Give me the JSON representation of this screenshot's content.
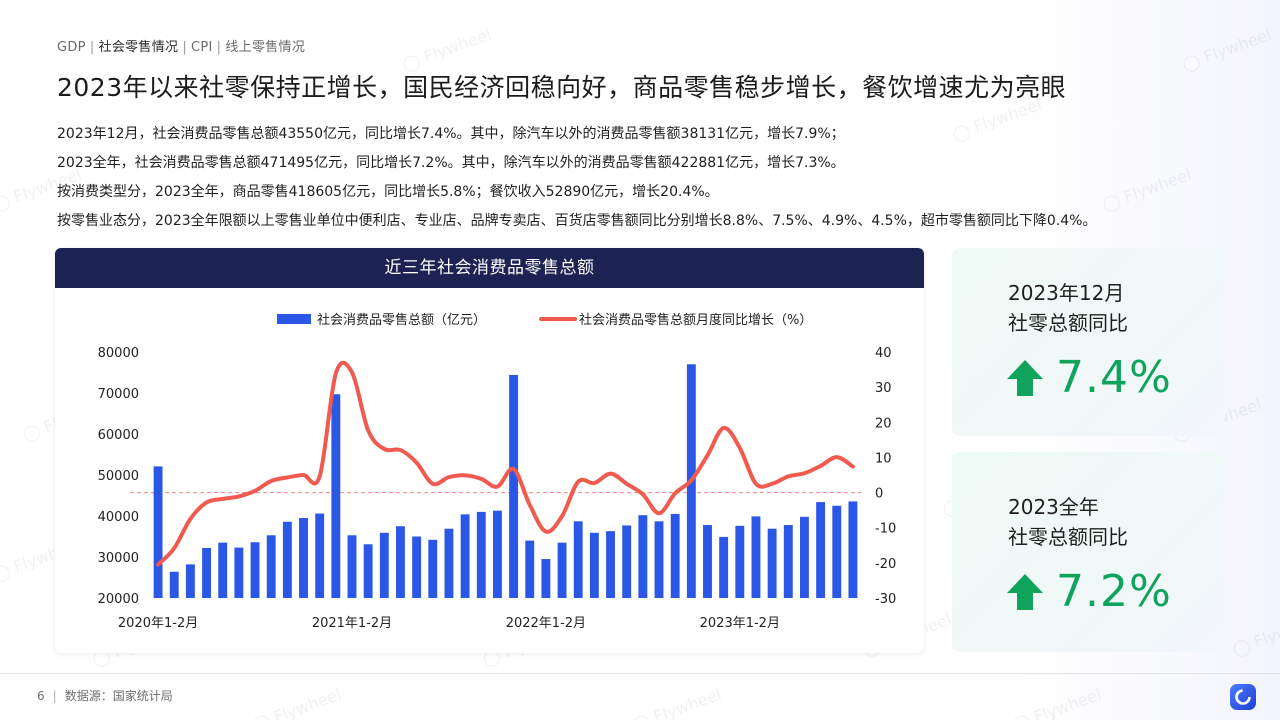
{
  "breadcrumb": {
    "items": [
      "GDP",
      "社会零售情况",
      "CPI",
      "线上零售情况"
    ]
  },
  "page_title": "2023年以来社零保持正增长，国民经济回稳向好，商品零售稳步增长，餐饮增速尤为亮眼",
  "summary": [
    "2023年12月，社会消费品零售总额43550亿元，同比增长7.4%。其中，除汽车以外的消费品零售额38131亿元，增长7.9%；",
    "2023全年，社会消费品零售总额471495亿元，同比增长7.2%。其中，除汽车以外的消费品零售额422881亿元，增长7.3%。",
    "按消费类型分，2023全年，商品零售418605亿元，同比增长5.8%；餐饮收入52890亿元，增长20.4%。",
    "按零售业态分，2023全年限额以上零售业单位中便利店、专业店、品牌专卖店、百货店零售额同比分别增长8.8%、7.5%、4.9%、4.5%，超市零售额同比下降0.4%。"
  ],
  "chart_header": "近三年社会消费品零售总额",
  "chart_data": {
    "type": "bar",
    "title": "近三年社会消费品零售总额",
    "x_labels": [
      "2020年1-2月",
      "2021年1-2月",
      "2022年1-2月",
      "2023年1-2月"
    ],
    "series": [
      {
        "name": "社会消费品零售总额（亿元）",
        "type": "bar",
        "axis": "left",
        "color": "#2b57e6",
        "values": [
          52100,
          26400,
          28200,
          32200,
          33500,
          32300,
          33600,
          35300,
          38600,
          39500,
          40600,
          69700,
          35300,
          33100,
          35900,
          37500,
          35000,
          34200,
          36900,
          40400,
          41000,
          41300,
          74400,
          34000,
          29500,
          33500,
          38700,
          35900,
          36300,
          37700,
          40200,
          38700,
          40500,
          77000,
          37800,
          34900,
          37600,
          39900,
          36900,
          37800,
          39800,
          43400,
          42500,
          43550
        ]
      },
      {
        "name": "社会消费品零售总额月度同比增长（%）",
        "type": "line",
        "axis": "right",
        "color": "#f05a4f",
        "values": [
          -20.5,
          -15.8,
          -7.5,
          -2.8,
          -1.8,
          -1.1,
          0.5,
          3.3,
          4.3,
          5.0,
          4.6,
          33.9,
          34.2,
          17.7,
          12.4,
          12.1,
          8.5,
          2.5,
          4.4,
          4.9,
          3.9,
          1.7,
          6.7,
          -3.5,
          -11.1,
          -6.7,
          3.1,
          2.7,
          5.4,
          2.5,
          -0.5,
          -5.9,
          -0.2,
          3.5,
          10.6,
          18.4,
          12.7,
          2.5,
          2.5,
          4.6,
          5.5,
          7.6,
          10.1,
          7.4
        ]
      }
    ],
    "y_left": {
      "min": 20000,
      "max": 80000,
      "ticks": [
        20000,
        30000,
        40000,
        50000,
        60000,
        70000,
        80000
      ]
    },
    "y_right": {
      "min": -30,
      "max": 40,
      "ticks": [
        -30,
        -20,
        -10,
        0,
        10,
        20,
        30,
        40
      ]
    },
    "zero_reference_line": true,
    "legend_position": "top"
  },
  "kpi": [
    {
      "label_line1": "2023年12月",
      "label_line2": "社零总额同比",
      "value": "7.4%"
    },
    {
      "label_line1": "2023全年",
      "label_line2": "社零总额同比",
      "value": "7.2%"
    }
  ],
  "footer": {
    "page_number": "6",
    "source": "数据源：国家统计局"
  },
  "colors": {
    "accent_green": "#0fa35c",
    "header_navy": "#1c2352",
    "bar_blue": "#2b57e6",
    "line_red": "#f05a4f"
  },
  "watermark_text": "Flywheel"
}
